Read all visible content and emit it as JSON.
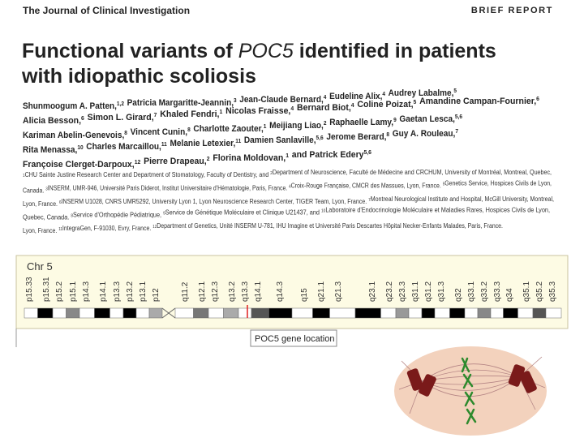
{
  "header": {
    "journal": "The Journal of Clinical Investigation",
    "section": "BRIEF REPORT"
  },
  "article": {
    "title": {
      "line1_start": "Functional variants of ",
      "gene": "POC5",
      "line1_end": " identified in patients",
      "line2": "with idiopathic scoliosis"
    },
    "authors": [
      [
        {
          "name": "Shunmoogum A. Patten,",
          "sup": "1,2"
        },
        {
          "name": "Patricia Margaritte-Jeannin,",
          "sup": "3"
        },
        {
          "name": "Jean-Claude Bernard,",
          "sup": "4"
        },
        {
          "name": "Eudeline Alix,",
          "sup": "4"
        },
        {
          "name": "Audrey Labalme,",
          "sup": "5"
        }
      ],
      [
        {
          "name": "Alicia Besson,",
          "sup": "6"
        },
        {
          "name": "Simon L. Girard,",
          "sup": "7"
        },
        {
          "name": "Khaled Fendri,",
          "sup": "1"
        },
        {
          "name": "Nicolas Fraisse,",
          "sup": "4"
        },
        {
          "name": "Bernard Biot,",
          "sup": "4"
        },
        {
          "name": "Coline Poizat,",
          "sup": "5"
        },
        {
          "name": "Amandine Campan-Fournier,",
          "sup": "6"
        }
      ],
      [
        {
          "name": "Kariman Abelin-Genevois,",
          "sup": "8"
        },
        {
          "name": "Vincent Cunin,",
          "sup": "8"
        },
        {
          "name": "Charlotte Zaouter,",
          "sup": "1"
        },
        {
          "name": "Meijiang Liao,",
          "sup": "2"
        },
        {
          "name": "Raphaelle Lamy,",
          "sup": "9"
        },
        {
          "name": "Gaetan Lesca,",
          "sup": "5,6"
        }
      ],
      [
        {
          "name": "Rita Menassa,",
          "sup": "10"
        },
        {
          "name": "Charles Marcaillou,",
          "sup": "11"
        },
        {
          "name": "Melanie Letexier,",
          "sup": "11"
        },
        {
          "name": "Damien Sanlaville,",
          "sup": "5,6"
        },
        {
          "name": "Jerome Berard,",
          "sup": "8"
        },
        {
          "name": "Guy A. Rouleau,",
          "sup": "7"
        }
      ],
      [
        {
          "name": "Françoise Clerget-Darpoux,",
          "sup": "12"
        },
        {
          "name": "Pierre Drapeau,",
          "sup": "2"
        },
        {
          "name": "Florina Moldovan,",
          "sup": "1"
        },
        {
          "name": "and Patrick Edery",
          "sup": "5,6"
        }
      ]
    ],
    "affiliations": [
      [
        {
          "sup": "1"
        },
        {
          "text": "CHU Sainte Justine Research Center and Department of Stomatology, Faculty of Dentistry, and "
        },
        {
          "sup": "2"
        },
        {
          "text": "Department of Neuroscience, Faculté de Médecine and CRCHUM, University of Montréal, Montreal, Quebec,"
        }
      ],
      [
        {
          "text": "Canada. "
        },
        {
          "sup": "3"
        },
        {
          "text": "INSERM, UMR-946, Université Paris Diderot, Institut Universitaire d'Hématologie, Paris, France. "
        },
        {
          "sup": "4"
        },
        {
          "text": "Croix-Rouge Française, CMCR des Massues, Lyon, France. "
        },
        {
          "sup": "5"
        },
        {
          "text": "Genetics Service, Hospices Civils de Lyon,"
        }
      ],
      [
        {
          "text": "Lyon, France. "
        },
        {
          "sup": "6"
        },
        {
          "text": "INSERM U1028, CNRS UMR5292, University Lyon 1, Lyon Neuroscience Research Center, TIGER Team, Lyon, France. "
        },
        {
          "sup": "7"
        },
        {
          "text": "Montreal Neurological Institute and Hospital, McGill University, Montreal,"
        }
      ],
      [
        {
          "text": "Quebec, Canada. "
        },
        {
          "sup": "8"
        },
        {
          "text": "Service d'Orthopédie Pédiatrique, "
        },
        {
          "sup": "9"
        },
        {
          "text": "Service de Génétique Moléculaire et Clinique U21437, and "
        },
        {
          "sup": "10"
        },
        {
          "text": "Laboratoire d'Endocrinologie Moléculaire et Maladies Rares, Hospices Civils de Lyon,"
        }
      ],
      [
        {
          "text": "Lyon, France. "
        },
        {
          "sup": "11"
        },
        {
          "text": "IntegraGen, F-91030, Evry, France. "
        },
        {
          "sup": "12"
        },
        {
          "text": "Department of Genetics, Unité INSERM U-781, IHU Imagine et Université Paris Descartes Hôpital Necker-Enfants Malades, Paris, France."
        }
      ]
    ]
  },
  "figure": {
    "chromosome": "Chr 5",
    "bands": [
      "p15.33",
      "p15.31",
      "p15.2",
      "p15.1",
      "p14.3",
      "p14.1",
      "p13.3",
      "p13.2",
      "p13.1",
      "p12",
      "q11.2",
      "q12.1",
      "q12.3",
      "q13.2",
      "q13.3",
      "q14.1",
      "q14.3",
      "q15",
      "q21.1",
      "q21.3",
      "q23.1",
      "q23.2",
      "q23.3",
      "q31.1",
      "q31.2",
      "q31.3",
      "q32",
      "q33.1",
      "q33.2",
      "q33.3",
      "q34",
      "q35.1",
      "q35.2",
      "q35.3"
    ],
    "tooltip": "POC5 gene location"
  }
}
